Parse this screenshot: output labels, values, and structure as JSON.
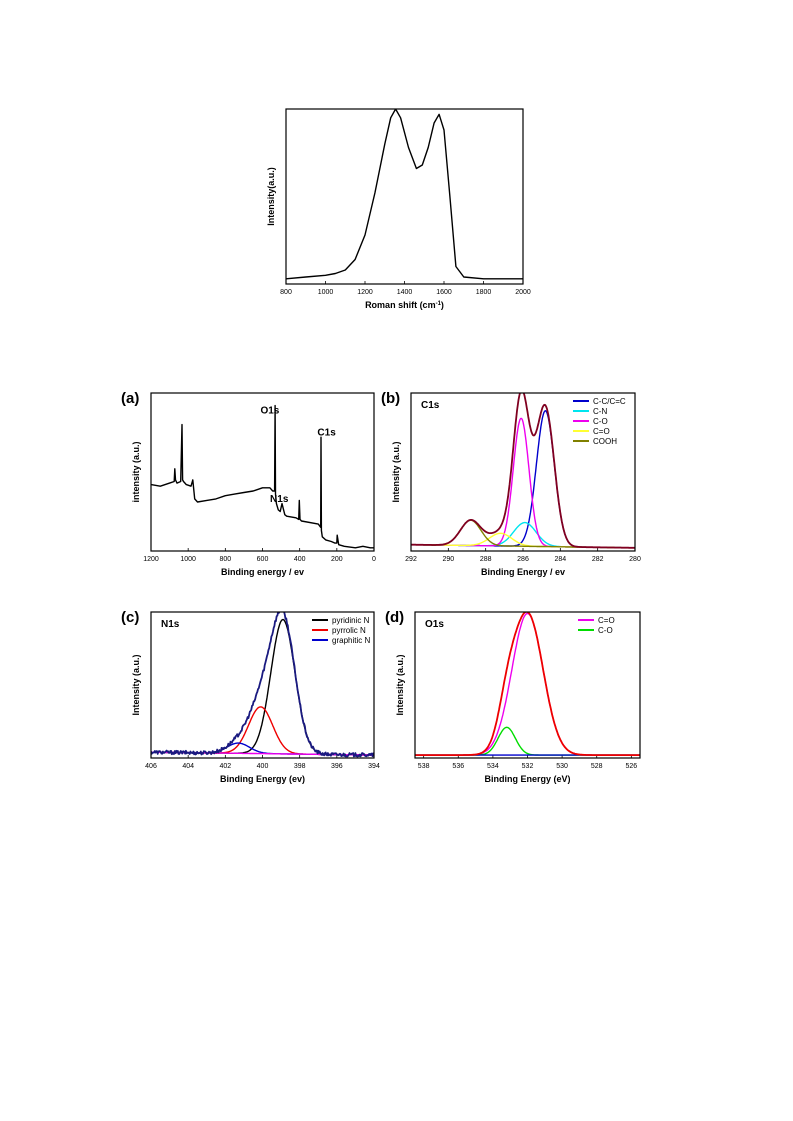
{
  "chart_data": [
    {
      "id": "raman",
      "type": "line",
      "title": "",
      "xlabel": "Roman shift (cm",
      "xlabel_sup": "-1",
      "xlabel_end": ")",
      "ylabel": "Intensity(a.u.)",
      "xlim": [
        800,
        2000
      ],
      "ylim": [
        0,
        1
      ],
      "xticks": [
        800,
        1000,
        1200,
        1400,
        1600,
        1800,
        2000
      ],
      "series": [
        {
          "color": "#000000",
          "x": [
            800,
            900,
            1000,
            1050,
            1100,
            1150,
            1200,
            1250,
            1300,
            1330,
            1355,
            1380,
            1420,
            1460,
            1490,
            1520,
            1550,
            1575,
            1600,
            1630,
            1660,
            1700,
            1800,
            1900,
            2000
          ],
          "y": [
            0.03,
            0.04,
            0.05,
            0.06,
            0.08,
            0.14,
            0.28,
            0.52,
            0.8,
            0.95,
            1.0,
            0.95,
            0.78,
            0.66,
            0.68,
            0.78,
            0.92,
            0.97,
            0.88,
            0.5,
            0.1,
            0.04,
            0.03,
            0.03,
            0.03
          ]
        }
      ]
    },
    {
      "id": "a",
      "panel_label": "(a)",
      "type": "line",
      "xlabel": "Binding energy / ev",
      "ylabel": "intensity (a.u.)",
      "xlim": [
        1200,
        0
      ],
      "ylim": [
        0,
        1
      ],
      "xticks": [
        1200,
        1000,
        800,
        600,
        400,
        200,
        0
      ],
      "annotations": [
        {
          "text": "O1s",
          "x": 560,
          "y": 0.87
        },
        {
          "text": "C1s",
          "x": 255,
          "y": 0.73
        },
        {
          "text": "N1s",
          "x": 510,
          "y": 0.31
        }
      ],
      "series": [
        {
          "color": "#000000",
          "x": [
            1200,
            1150,
            1100,
            1075,
            1072,
            1068,
            1060,
            1040,
            1033,
            1030,
            1025,
            1010,
            985,
            975,
            965,
            950,
            900,
            850,
            800,
            750,
            700,
            650,
            600,
            560,
            545,
            535,
            532,
            530,
            525,
            515,
            505,
            495,
            480,
            470,
            420,
            405,
            402,
            398,
            390,
            300,
            287,
            285,
            283,
            278,
            260,
            230,
            210,
            200,
            198,
            190,
            160,
            100,
            60,
            20,
            0
          ],
          "y": [
            0.42,
            0.41,
            0.43,
            0.44,
            0.52,
            0.45,
            0.43,
            0.44,
            0.8,
            0.45,
            0.44,
            0.42,
            0.41,
            0.45,
            0.33,
            0.31,
            0.32,
            0.33,
            0.35,
            0.36,
            0.37,
            0.38,
            0.4,
            0.4,
            0.38,
            0.38,
            0.92,
            0.36,
            0.3,
            0.26,
            0.25,
            0.3,
            0.23,
            0.22,
            0.21,
            0.2,
            0.32,
            0.2,
            0.19,
            0.17,
            0.15,
            0.72,
            0.13,
            0.09,
            0.07,
            0.06,
            0.05,
            0.05,
            0.1,
            0.04,
            0.03,
            0.02,
            0.03,
            0.02,
            0.02
          ]
        }
      ]
    },
    {
      "id": "b",
      "panel_label": "(b)",
      "type": "line",
      "title": "C1s",
      "xlabel": "Binding Energy / ev",
      "ylabel": "Intensity (a.u.)",
      "xlim": [
        292,
        280
      ],
      "ylim": [
        0,
        1
      ],
      "xticks": [
        292,
        290,
        288,
        286,
        284,
        282,
        280
      ],
      "legend": "top-right",
      "series": [
        {
          "name": "C-C/C=C",
          "color": "#0000cc",
          "peaks": [
            {
              "c": 284.8,
              "a": 0.86,
              "w": 0.48
            }
          ],
          "baseline": [
            0.04,
            0.02
          ]
        },
        {
          "name": "C-N",
          "color": "#00e5ee",
          "peaks": [
            {
              "c": 285.9,
              "a": 0.15,
              "w": 0.6
            }
          ],
          "baseline": [
            0.04,
            0.02
          ]
        },
        {
          "name": "C-O",
          "color": "#ee00ee",
          "peaks": [
            {
              "c": 286.1,
              "a": 0.81,
              "w": 0.42
            }
          ],
          "baseline": [
            0.04,
            0.02
          ]
        },
        {
          "name": "C=O",
          "color": "#ffff33",
          "peaks": [
            {
              "c": 287.2,
              "a": 0.08,
              "w": 0.6
            }
          ],
          "baseline": [
            0.04,
            0.02
          ]
        },
        {
          "name": "COOH",
          "color": "#808000",
          "peaks": [
            {
              "c": 288.8,
              "a": 0.16,
              "w": 0.55
            }
          ],
          "baseline": [
            0.04,
            0.02
          ]
        },
        {
          "color": "#800020",
          "envelope": true,
          "baseline": [
            0.04,
            0.02
          ]
        }
      ]
    },
    {
      "id": "c",
      "panel_label": "(c)",
      "type": "line",
      "title": "N1s",
      "xlabel": "Binding Energy (ev)",
      "ylabel": "Intensity (a.u.)",
      "xlim": [
        406,
        394
      ],
      "ylim": [
        0,
        1
      ],
      "xticks": [
        406,
        404,
        402,
        400,
        398,
        396,
        394
      ],
      "legend": "top-right",
      "series": [
        {
          "name": "pyridinic N",
          "color": "#000000",
          "peaks": [
            {
              "c": 398.9,
              "a": 0.92,
              "w": 0.65
            }
          ],
          "baseline": [
            0.04,
            0.02
          ]
        },
        {
          "name": "pyrrolic N",
          "color": "#ee0000",
          "peaks": [
            {
              "c": 400.1,
              "a": 0.32,
              "w": 0.65
            }
          ],
          "baseline": [
            0.04,
            0.02
          ]
        },
        {
          "name": "graphitic N",
          "color": "#0000cc",
          "peaks": [
            {
              "c": 401.3,
              "a": 0.07,
              "w": 0.6
            }
          ],
          "baseline": [
            0.04,
            0.02
          ]
        },
        {
          "color": "#ee00ee",
          "baseline_only": true,
          "baseline": [
            0.04,
            0.02
          ]
        },
        {
          "color": "#1a1a80",
          "envelope": true,
          "noise": true,
          "baseline": [
            0.04,
            0.02
          ]
        }
      ]
    },
    {
      "id": "d",
      "panel_label": "(d)",
      "type": "line",
      "title": "O1s",
      "xlabel": "Binding Energy (eV)",
      "ylabel": "Intensity (a.u.)",
      "xlim": [
        538.5,
        525.5
      ],
      "ylim": [
        0,
        1
      ],
      "xticks": [
        538,
        536,
        534,
        532,
        530,
        528,
        526
      ],
      "legend": "top-right",
      "series": [
        {
          "name": "C=O",
          "color": "#ee00ee",
          "peaks": [
            {
              "c": 532.0,
              "a": 0.97,
              "w": 0.9
            }
          ],
          "baseline": [
            0.02,
            0.02
          ]
        },
        {
          "name": "C-O",
          "color": "#00dd00",
          "peaks": [
            {
              "c": 533.2,
              "a": 0.19,
              "w": 0.5
            }
          ],
          "baseline": [
            0.02,
            0.02
          ]
        },
        {
          "color": "#0000cc",
          "baseline_only": true,
          "baseline": [
            0.02,
            0.02
          ]
        },
        {
          "color": "#ee0000",
          "envelope": true,
          "baseline": [
            0.02,
            0.02
          ]
        }
      ]
    }
  ]
}
